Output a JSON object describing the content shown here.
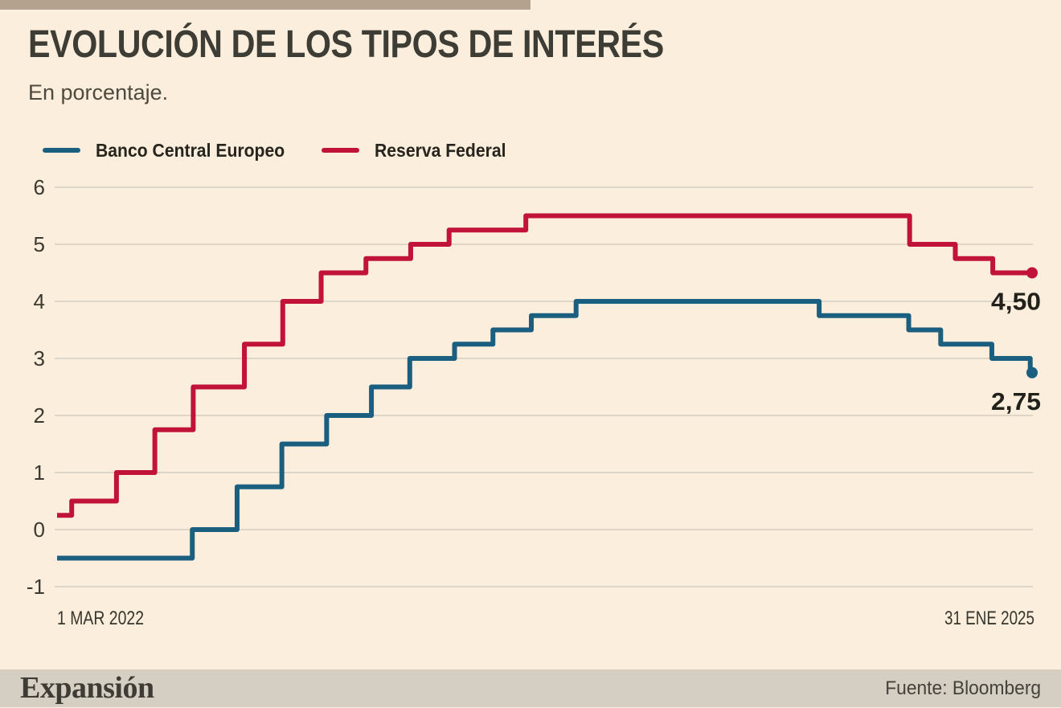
{
  "header": {
    "title": "EVOLUCIÓN DE LOS TIPOS DE INTERÉS",
    "subtitle": "En porcentaje."
  },
  "colors": {
    "background": "#fbeedc",
    "top_bar": "#b2a28e",
    "grid": "#ddd6c8",
    "footer_band": "#d5cec3",
    "ecb_blue": "#1b5f80",
    "fed_red": "#c11337"
  },
  "chart_data": {
    "type": "line",
    "step": true,
    "title": "EVOLUCIÓN DE LOS TIPOS DE INTERÉS",
    "subtitle": "En porcentaje.",
    "xlabel": "",
    "ylabel": "",
    "grid": true,
    "legend_position": "top-left",
    "ylim": [
      -1,
      6
    ],
    "y_ticks": [
      6,
      5,
      4,
      3,
      2,
      1,
      0,
      -1
    ],
    "x_axis": {
      "start_label": "1 MAR 2022",
      "end_label": "31 ENE 2025",
      "span_days": 1067
    },
    "series": [
      {
        "name": "Banco Central Europeo",
        "color": "#1b5f80",
        "end_label": "2,75",
        "final_value": 2.75,
        "points_days_value": [
          [
            0,
            -0.5
          ],
          [
            148,
            0.0
          ],
          [
            197,
            0.75
          ],
          [
            246,
            1.5
          ],
          [
            295,
            2.0
          ],
          [
            344,
            2.5
          ],
          [
            386,
            3.0
          ],
          [
            435,
            3.25
          ],
          [
            477,
            3.5
          ],
          [
            519,
            3.75
          ],
          [
            568,
            4.0
          ],
          [
            834,
            3.75
          ],
          [
            932,
            3.5
          ],
          [
            967,
            3.25
          ],
          [
            1023,
            3.0
          ],
          [
            1065,
            2.75
          ],
          [
            1067,
            2.75
          ]
        ]
      },
      {
        "name": "Reserva Federal",
        "color": "#c11337",
        "end_label": "4,50",
        "final_value": 4.5,
        "points_days_value": [
          [
            0,
            0.25
          ],
          [
            16,
            0.5
          ],
          [
            65,
            1.0
          ],
          [
            107,
            1.75
          ],
          [
            149,
            2.5
          ],
          [
            205,
            3.25
          ],
          [
            247,
            4.0
          ],
          [
            289,
            4.5
          ],
          [
            338,
            4.75
          ],
          [
            387,
            5.0
          ],
          [
            429,
            5.25
          ],
          [
            513,
            5.5
          ],
          [
            933,
            5.0
          ],
          [
            983,
            4.75
          ],
          [
            1024,
            4.5
          ],
          [
            1067,
            4.5
          ]
        ]
      }
    ]
  },
  "footer": {
    "logo": "Expansión",
    "source": "Fuente: Bloomberg"
  }
}
